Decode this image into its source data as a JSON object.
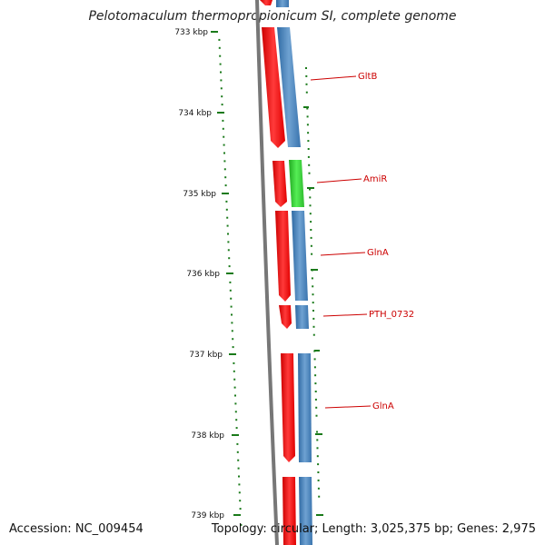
{
  "title": "Pelotomaculum thermopropionicum SI, complete genome",
  "accession": "Accession: NC_009454",
  "topology": "Topology: circular; Length: 3,025,375 bp; Genes: 2,975",
  "ticks": [
    "733 kbp",
    "734 kbp",
    "735 kbp",
    "736 kbp",
    "737 kbp",
    "738 kbp",
    "739 kbp"
  ],
  "genes": [
    {
      "name": "GltB",
      "strand": "-",
      "color": "#ff0000"
    },
    {
      "name": "AmiR",
      "strand": "+",
      "color": "#33cc33"
    },
    {
      "name": "GlnA",
      "strand": "-",
      "color": "#ff0000"
    },
    {
      "name": "PTH_0732",
      "strand": "-",
      "color": "#ff0000"
    },
    {
      "name": "GlnA",
      "strand": "-",
      "color": "#ff0000"
    }
  ],
  "colors": {
    "forward_cds": "#4a86c0",
    "reverse_cds": "#ff0000",
    "rna": "#33cc33",
    "backbone": "#777777",
    "ticks": "#1a7a1a",
    "labels": "#cc0000"
  }
}
